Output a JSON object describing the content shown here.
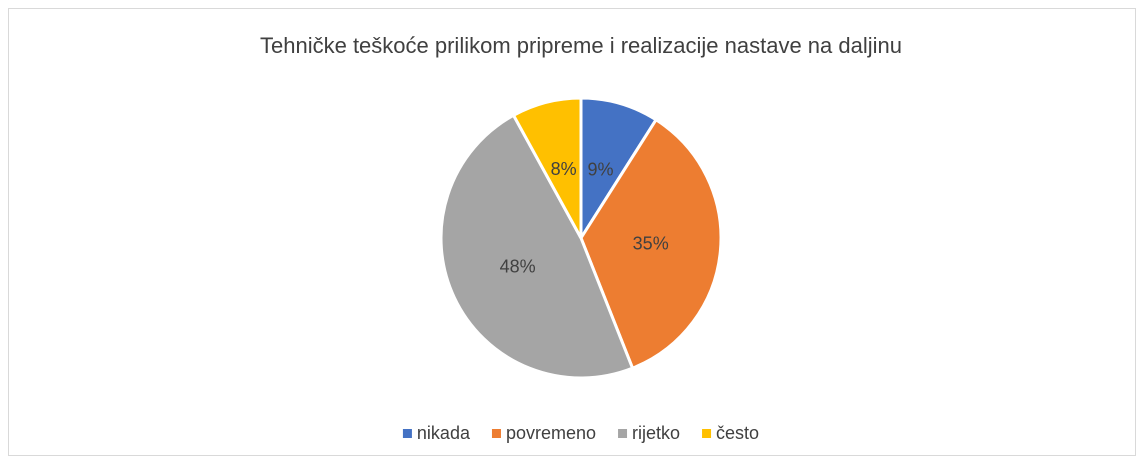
{
  "chart_data": {
    "type": "pie",
    "title": "Tehničke teškoće prilikom pripreme i realizacije nastave na daljinu",
    "categories": [
      "nikada",
      "povremeno",
      "rijetko",
      "često"
    ],
    "values": [
      9,
      35,
      48,
      8
    ],
    "value_labels": [
      "9%",
      "35%",
      "48%",
      "8%"
    ],
    "colors": [
      "#4472c4",
      "#ed7d31",
      "#a5a5a5",
      "#ffc000"
    ],
    "legend": "bottom"
  }
}
